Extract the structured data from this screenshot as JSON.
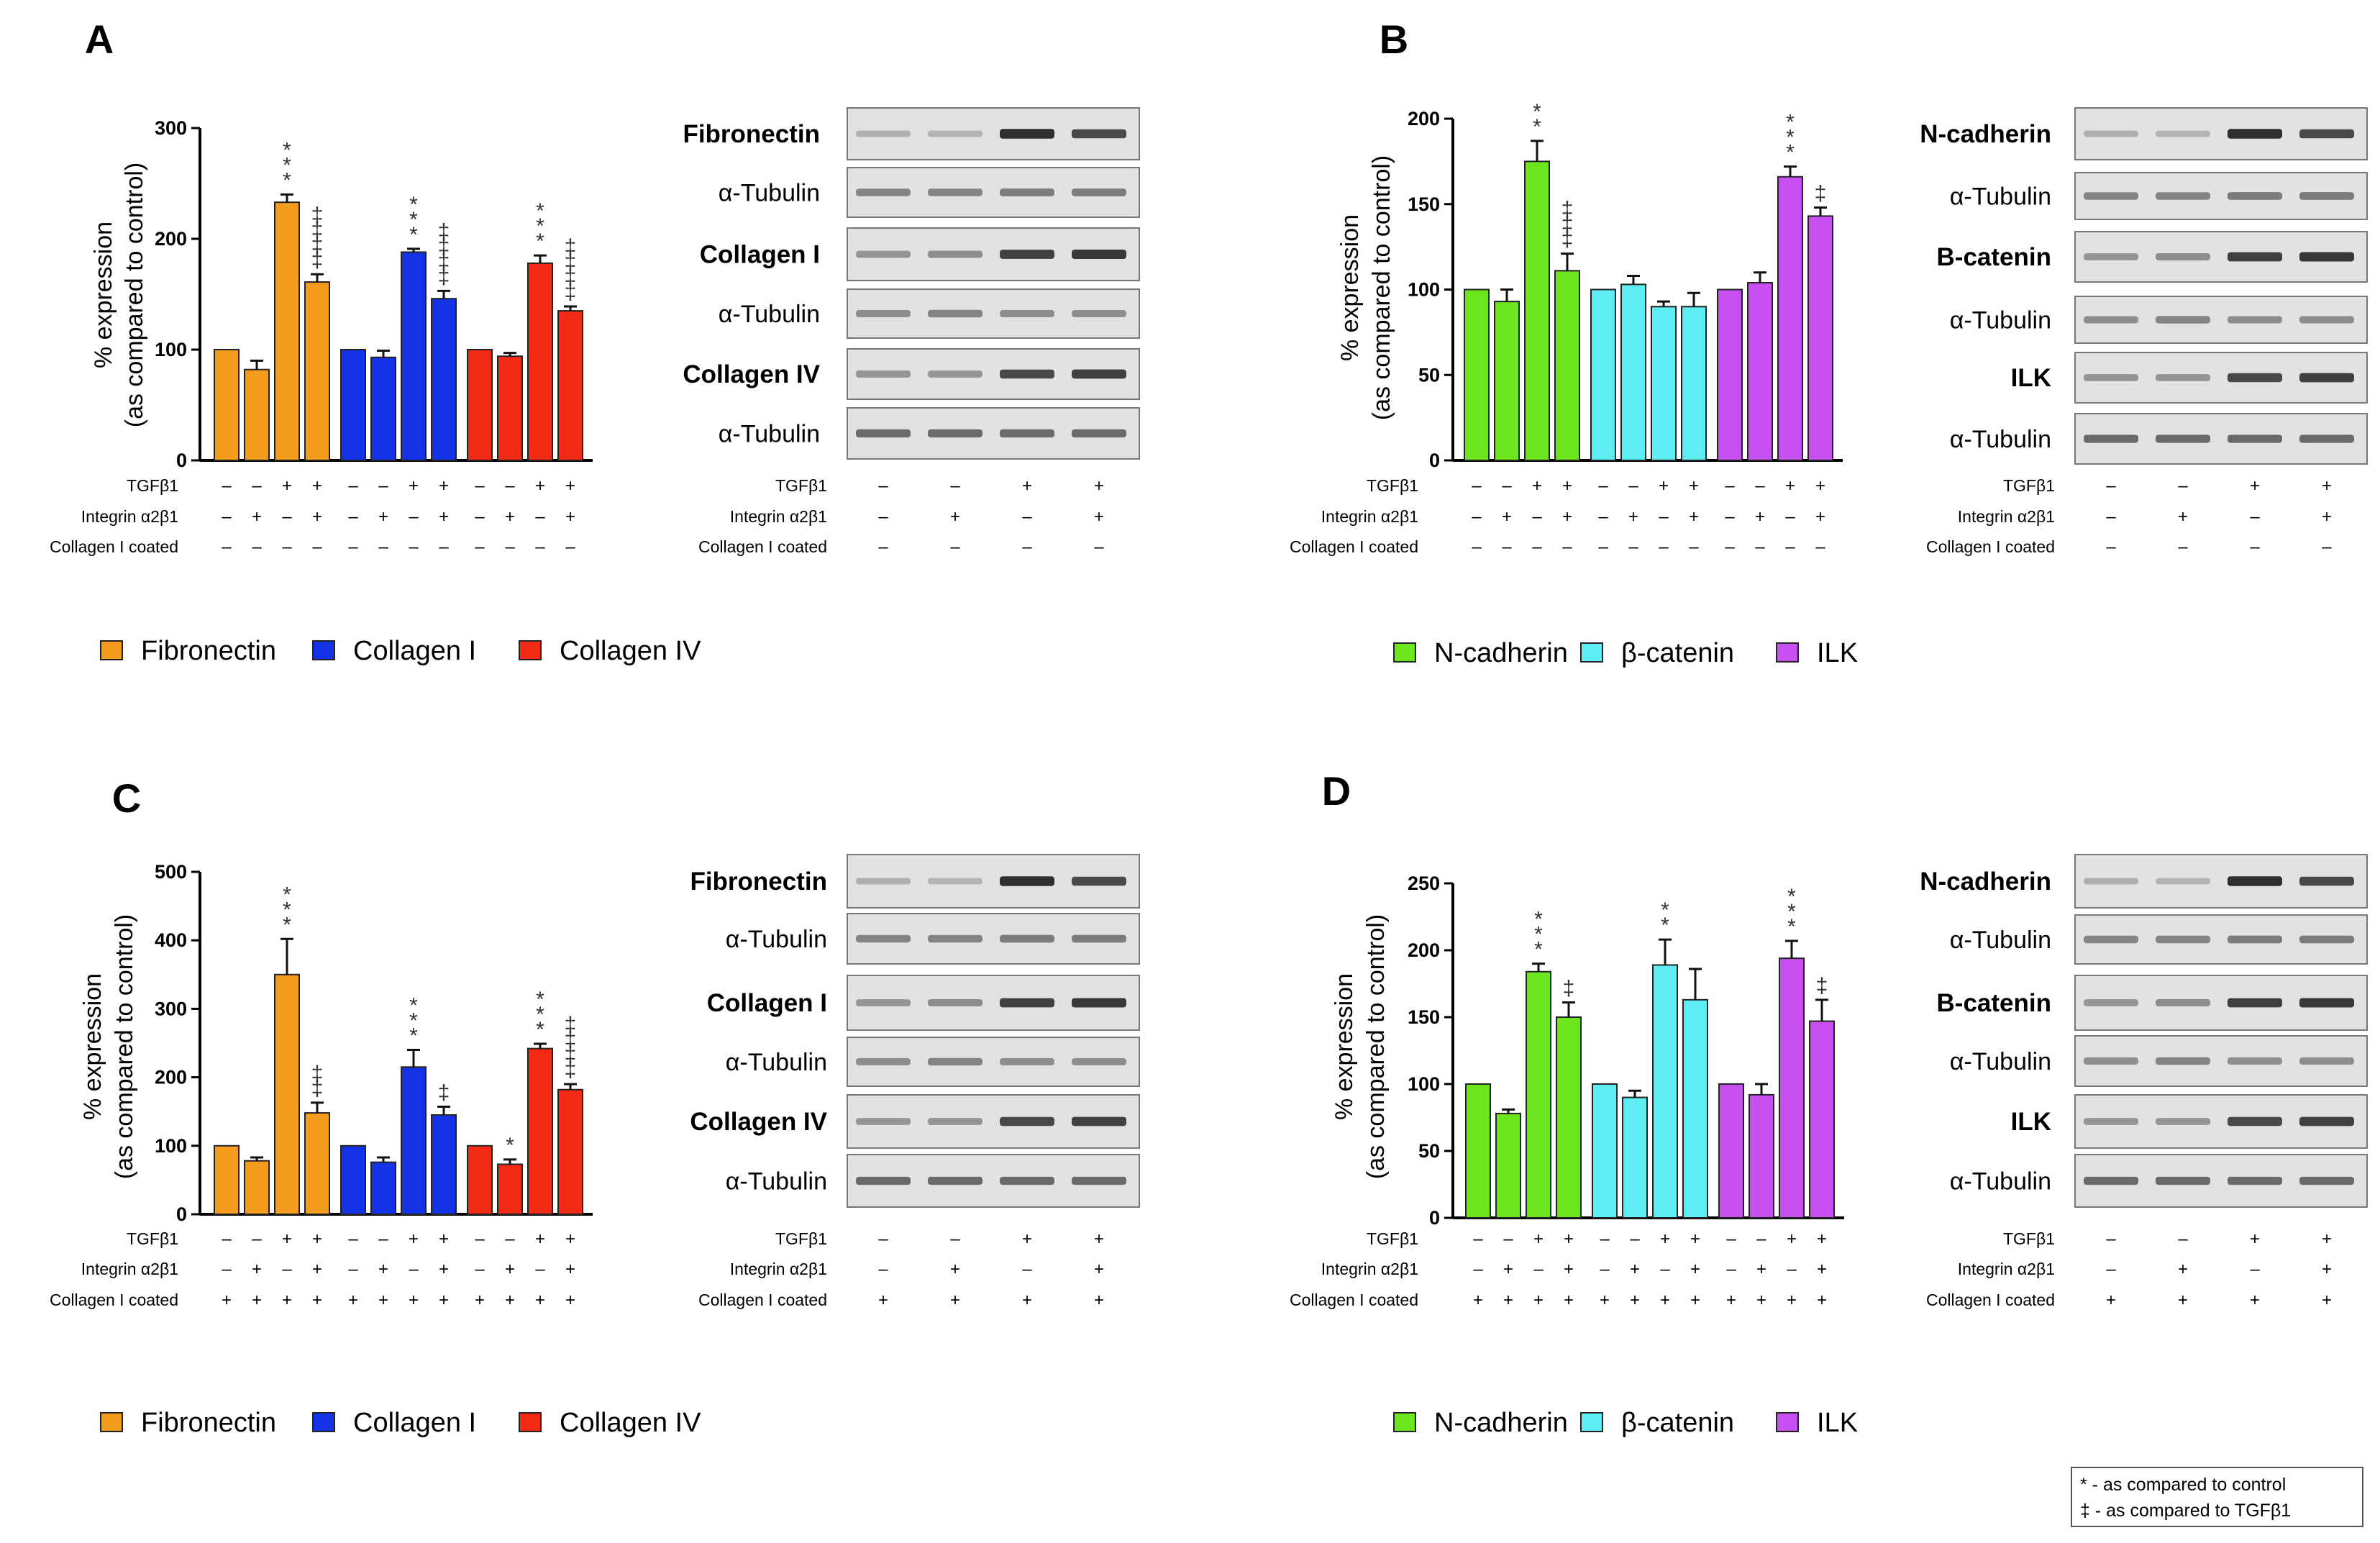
{
  "chart_data": [
    {
      "panel": "A",
      "type": "bar",
      "ylabel_line1": "% expression",
      "ylabel_line2": "(as compared to control)",
      "ylim": [
        0,
        300
      ],
      "yticks": [
        0,
        100,
        200,
        300
      ],
      "series": [
        {
          "name": "Fibronectin",
          "color": "#F39C1E",
          "values": [
            100,
            82,
            233,
            161
          ],
          "errors": [
            0,
            8,
            7,
            7
          ],
          "stars": [
            "",
            "",
            "***",
            ""
          ],
          "daggers": [
            "",
            "",
            "",
            "‡‡‡‡"
          ]
        },
        {
          "name": "Collagen I",
          "color": "#1432E6",
          "values": [
            100,
            93,
            188,
            146
          ],
          "errors": [
            0,
            6,
            3,
            7
          ],
          "stars": [
            "",
            "",
            "***",
            ""
          ],
          "daggers": [
            "",
            "",
            "",
            "‡‡‡‡"
          ]
        },
        {
          "name": "Collagen IV",
          "color": "#F22A16",
          "values": [
            100,
            94,
            178,
            135
          ],
          "errors": [
            0,
            3,
            7,
            4
          ],
          "stars": [
            "",
            "",
            "***",
            ""
          ],
          "daggers": [
            "",
            "",
            "",
            "‡‡‡‡"
          ]
        }
      ],
      "conditions": [
        {
          "label": "TGFβ1",
          "signs": [
            "–",
            "–",
            "+",
            "+"
          ]
        },
        {
          "label": "Integrin α2β1",
          "signs": [
            "–",
            "+",
            "–",
            "+"
          ]
        },
        {
          "label": "Collagen I coated",
          "signs": [
            "–",
            "–",
            "–",
            "–"
          ]
        }
      ],
      "blot_labels": [
        "Fibronectin",
        "α-Tubulin",
        "Collagen I",
        "α-Tubulin",
        "Collagen IV",
        "α-Tubulin"
      ],
      "blot_bold": [
        true,
        false,
        true,
        false,
        true,
        false
      ]
    },
    {
      "panel": "B",
      "type": "bar",
      "ylabel_line1": "% expression",
      "ylabel_line2": "(as compared to control)",
      "ylim": [
        0,
        200
      ],
      "yticks": [
        0,
        50,
        100,
        150,
        200
      ],
      "series": [
        {
          "name": "N-cadherin",
          "color": "#6CE51E",
          "values": [
            100,
            93,
            175,
            111
          ],
          "errors": [
            0,
            7,
            12,
            10
          ],
          "stars": [
            "",
            "",
            "**",
            ""
          ],
          "daggers": [
            "",
            "",
            "",
            "‡‡‡"
          ]
        },
        {
          "name": "β-catenin",
          "color": "#5EEDF2",
          "values": [
            100,
            103,
            90,
            90
          ],
          "errors": [
            0,
            5,
            3,
            8
          ],
          "stars": [
            "",
            "",
            "",
            ""
          ],
          "daggers": [
            "",
            "",
            "",
            ""
          ]
        },
        {
          "name": "ILK",
          "color": "#C850F0",
          "values": [
            100,
            104,
            166,
            143
          ],
          "errors": [
            0,
            6,
            6,
            5
          ],
          "stars": [
            "",
            "",
            "***",
            ""
          ],
          "daggers": [
            "",
            "",
            "",
            "‡"
          ]
        }
      ],
      "conditions": [
        {
          "label": "TGFβ1",
          "signs": [
            "–",
            "–",
            "+",
            "+"
          ]
        },
        {
          "label": "Integrin α2β1",
          "signs": [
            "–",
            "+",
            "–",
            "+"
          ]
        },
        {
          "label": "Collagen I coated",
          "signs": [
            "–",
            "–",
            "–",
            "–"
          ]
        }
      ],
      "blot_labels": [
        "N-cadherin",
        "α-Tubulin",
        "B-catenin",
        "α-Tubulin",
        "ILK",
        "α-Tubulin"
      ],
      "blot_bold": [
        true,
        false,
        true,
        false,
        true,
        false
      ]
    },
    {
      "panel": "C",
      "type": "bar",
      "ylabel_line1": "% expression",
      "ylabel_line2": "(as compared to control)",
      "ylim": [
        0,
        500
      ],
      "yticks": [
        0,
        100,
        200,
        300,
        400,
        500
      ],
      "series": [
        {
          "name": "Fibronectin",
          "color": "#F39C1E",
          "values": [
            100,
            78,
            350,
            148
          ],
          "errors": [
            0,
            5,
            52,
            15
          ],
          "stars": [
            "",
            "",
            "***",
            ""
          ],
          "daggers": [
            "",
            "",
            "",
            "‡‡"
          ]
        },
        {
          "name": "Collagen I",
          "color": "#1432E6",
          "values": [
            100,
            76,
            215,
            145
          ],
          "errors": [
            0,
            7,
            25,
            12
          ],
          "stars": [
            "",
            "",
            "***",
            ""
          ],
          "daggers": [
            "",
            "",
            "",
            "‡"
          ]
        },
        {
          "name": "Collagen IV",
          "color": "#F22A16",
          "values": [
            100,
            73,
            242,
            182
          ],
          "errors": [
            0,
            7,
            7,
            8
          ],
          "stars": [
            "",
            "*",
            "***",
            ""
          ],
          "daggers": [
            "",
            "",
            "",
            "‡‡‡‡"
          ]
        }
      ],
      "conditions": [
        {
          "label": "TGFβ1",
          "signs": [
            "–",
            "–",
            "+",
            "+"
          ]
        },
        {
          "label": "Integrin α2β1",
          "signs": [
            "–",
            "+",
            "–",
            "+"
          ]
        },
        {
          "label": "Collagen I coated",
          "signs": [
            "+",
            "+",
            "+",
            "+"
          ]
        }
      ],
      "blot_labels": [
        "Fibronectin",
        "α-Tubulin",
        "Collagen I",
        "α-Tubulin",
        "Collagen IV",
        "α-Tubulin"
      ],
      "blot_bold": [
        true,
        false,
        true,
        false,
        true,
        false
      ]
    },
    {
      "panel": "D",
      "type": "bar",
      "ylabel_line1": "% expression",
      "ylabel_line2": "(as compared to control)",
      "ylim": [
        0,
        250
      ],
      "yticks": [
        0,
        50,
        100,
        150,
        200,
        250
      ],
      "series": [
        {
          "name": "N-cadherin",
          "color": "#6CE51E",
          "values": [
            100,
            78,
            184,
            150
          ],
          "errors": [
            0,
            3,
            6,
            11
          ],
          "stars": [
            "",
            "",
            "***",
            ""
          ],
          "daggers": [
            "",
            "",
            "",
            "‡"
          ]
        },
        {
          "name": "β-catenin",
          "color": "#5EEDF2",
          "values": [
            100,
            90,
            189,
            163
          ],
          "errors": [
            0,
            5,
            19,
            23
          ],
          "stars": [
            "",
            "",
            "**",
            ""
          ],
          "daggers": [
            "",
            "",
            "",
            ""
          ]
        },
        {
          "name": "ILK",
          "color": "#C850F0",
          "values": [
            100,
            92,
            194,
            147
          ],
          "errors": [
            0,
            8,
            13,
            16
          ],
          "stars": [
            "",
            "",
            "***",
            ""
          ],
          "daggers": [
            "",
            "",
            "",
            "‡"
          ]
        }
      ],
      "conditions": [
        {
          "label": "TGFβ1",
          "signs": [
            "–",
            "–",
            "+",
            "+"
          ]
        },
        {
          "label": "Integrin α2β1",
          "signs": [
            "–",
            "+",
            "–",
            "+"
          ]
        },
        {
          "label": "Collagen I coated",
          "signs": [
            "+",
            "+",
            "+",
            "+"
          ]
        }
      ],
      "blot_labels": [
        "N-cadherin",
        "α-Tubulin",
        "B-catenin",
        "α-Tubulin",
        "ILK",
        "α-Tubulin"
      ],
      "blot_bold": [
        true,
        false,
        true,
        false,
        true,
        false
      ]
    }
  ],
  "footnote": {
    "line1": "* - as compared to control",
    "line2": "‡ - as compared to TGFβ1"
  }
}
